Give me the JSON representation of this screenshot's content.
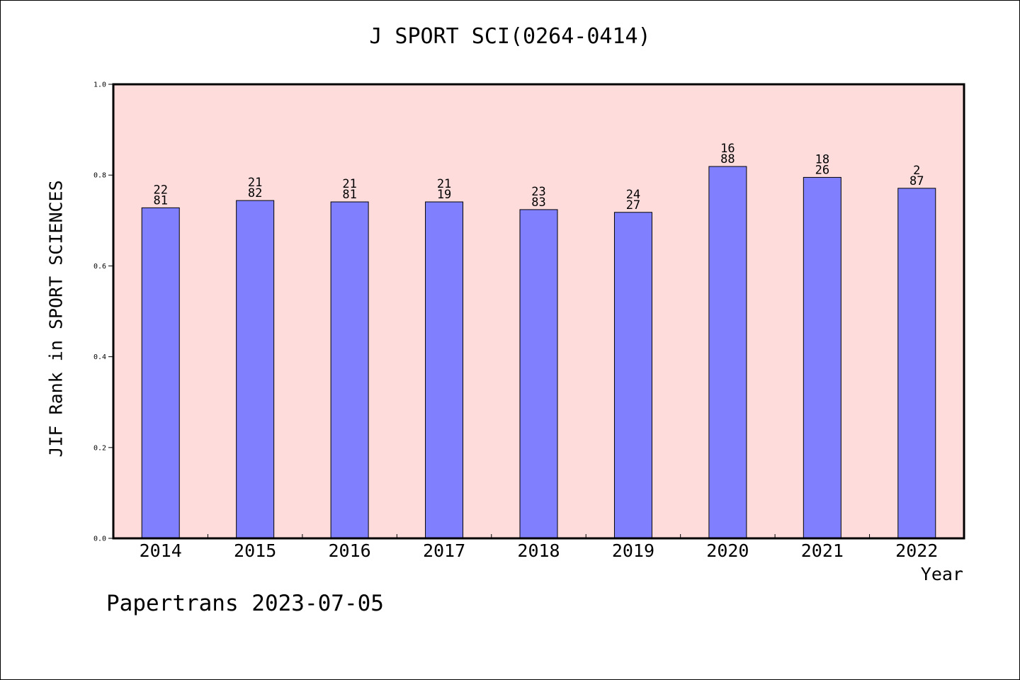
{
  "chart_data": {
    "type": "bar",
    "title": "J SPORT SCI(0264-0414)",
    "xlabel": "Year",
    "ylabel": "JIF Rank in SPORT SCIENCES",
    "categories": [
      "2014",
      "2015",
      "2016",
      "2017",
      "2018",
      "2019",
      "2020",
      "2021",
      "2022"
    ],
    "values": [
      0.728,
      0.744,
      0.741,
      0.741,
      0.724,
      0.718,
      0.819,
      0.795,
      0.771
    ],
    "bar_labels_top": [
      "22",
      "21",
      "21",
      "21",
      "23",
      "24",
      "16",
      "18",
      "2"
    ],
    "bar_labels_bottom": [
      "81",
      "82",
      "81",
      "19",
      "83",
      "27",
      "88",
      "26",
      "87"
    ],
    "ylim": [
      0,
      1.0
    ],
    "yticks": [
      "0.0",
      "0.2",
      "0.4",
      "0.6",
      "0.8",
      "1.0"
    ],
    "ytick_values": [
      0.0,
      0.2,
      0.4,
      0.6,
      0.8,
      1.0
    ],
    "grid": false,
    "colors": {
      "plot_background": "#ffdcdc",
      "bar_fill": "#8080ff",
      "bar_edge": "#000000",
      "axis": "#000000"
    }
  },
  "footer": "Papertrans 2023-07-05"
}
